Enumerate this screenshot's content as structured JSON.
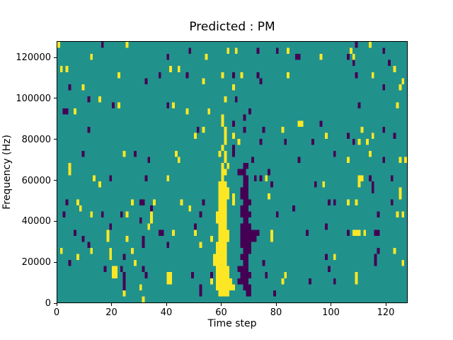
{
  "chart_data": {
    "type": "heatmap",
    "title": "Predicted : PM",
    "xlabel": "Time step",
    "ylabel": "Frequency (Hz)",
    "x_range": [
      0,
      128
    ],
    "y_range": [
      0,
      128000
    ],
    "x_ticks": [
      0,
      20,
      40,
      60,
      80,
      100,
      120
    ],
    "y_ticks": [
      0,
      20000,
      40000,
      60000,
      80000,
      100000,
      120000
    ],
    "grid_size": [
      128,
      43
    ],
    "grid_on": false,
    "legend": "none",
    "colors": {
      "figure_bg": "#ffffff",
      "background": "#21918c",
      "high": "#fde725",
      "low": "#440154",
      "text": "#000000",
      "spine": "#000000"
    },
    "cells": {
      "yellow_runs": [
        [
          1,
          59,
          62
        ],
        [
          2,
          58,
          64
        ],
        [
          3,
          58,
          63
        ],
        [
          4,
          58,
          62
        ],
        [
          5,
          58,
          62
        ],
        [
          6,
          57,
          61
        ],
        [
          7,
          57,
          61
        ],
        [
          8,
          58,
          61
        ],
        [
          9,
          58,
          61
        ],
        [
          10,
          59,
          62
        ],
        [
          11,
          59,
          62
        ],
        [
          12,
          59,
          61
        ],
        [
          13,
          58,
          61
        ],
        [
          14,
          58,
          61
        ],
        [
          15,
          59,
          61
        ],
        [
          16,
          59,
          61
        ],
        [
          17,
          59,
          62
        ],
        [
          18,
          59,
          62
        ],
        [
          19,
          59,
          61
        ],
        [
          20,
          60,
          60
        ],
        [
          21,
          60,
          61
        ],
        [
          22,
          60,
          60
        ],
        [
          22,
          62,
          62
        ],
        [
          23,
          61,
          61
        ],
        [
          24,
          59,
          59
        ],
        [
          24,
          61,
          61
        ],
        [
          25,
          60,
          60
        ],
        [
          26,
          61,
          61
        ],
        [
          27,
          61,
          61
        ],
        [
          28,
          61,
          61
        ],
        [
          29,
          60,
          60
        ],
        [
          30,
          60,
          60
        ],
        [
          33,
          61,
          61
        ],
        [
          37,
          60,
          60
        ],
        [
          16,
          64,
          64
        ],
        [
          17,
          64,
          64
        ],
        [
          42,
          0,
          0
        ],
        [
          42,
          25,
          25
        ],
        [
          40,
          12,
          12
        ],
        [
          38,
          1,
          1
        ],
        [
          38,
          3,
          3
        ],
        [
          37,
          22,
          22
        ],
        [
          38,
          41,
          41
        ],
        [
          35,
          9,
          9
        ],
        [
          33,
          15,
          15
        ],
        [
          32,
          22,
          22
        ],
        [
          32,
          42,
          42
        ],
        [
          31,
          6,
          6
        ],
        [
          24,
          24,
          24
        ],
        [
          24,
          43,
          43
        ],
        [
          22,
          4,
          4
        ],
        [
          41,
          62,
          62
        ],
        [
          41,
          65,
          65
        ],
        [
          41,
          84,
          84
        ],
        [
          40,
          54,
          54
        ],
        [
          38,
          44,
          44
        ],
        [
          37,
          67,
          67
        ],
        [
          37,
          84,
          84
        ],
        [
          36,
          53,
          53
        ],
        [
          35,
          64,
          64
        ],
        [
          31,
          47,
          47
        ],
        [
          31,
          55,
          55
        ],
        [
          28,
          53,
          53
        ],
        [
          28,
          82,
          82
        ],
        [
          27,
          50,
          50
        ],
        [
          27,
          64,
          64
        ],
        [
          26,
          66,
          66
        ],
        [
          23,
          44,
          44
        ],
        [
          42,
          114,
          114
        ],
        [
          41,
          107,
          107
        ],
        [
          40,
          96,
          96
        ],
        [
          40,
          108,
          108
        ],
        [
          38,
          123,
          123
        ],
        [
          37,
          115,
          115
        ],
        [
          36,
          126,
          126
        ],
        [
          35,
          125,
          125
        ],
        [
          32,
          124,
          124
        ],
        [
          29,
          88,
          89
        ],
        [
          28,
          111,
          111
        ],
        [
          27,
          98,
          98
        ],
        [
          27,
          115,
          115
        ],
        [
          26,
          110,
          110
        ],
        [
          26,
          113,
          113
        ],
        [
          24,
          114,
          114
        ],
        [
          23,
          106,
          106
        ],
        [
          23,
          125,
          125
        ],
        [
          23,
          127,
          127
        ],
        [
          21,
          4,
          4
        ],
        [
          20,
          13,
          13
        ],
        [
          20,
          40,
          40
        ],
        [
          19,
          15,
          15
        ],
        [
          16,
          7,
          7
        ],
        [
          16,
          27,
          27
        ],
        [
          16,
          35,
          35
        ],
        [
          15,
          8,
          8
        ],
        [
          14,
          12,
          12
        ],
        [
          14,
          25,
          25
        ],
        [
          14,
          34,
          34
        ],
        [
          13,
          34,
          34
        ],
        [
          12,
          33,
          33
        ],
        [
          11,
          42,
          42
        ],
        [
          11,
          18,
          18
        ],
        [
          10,
          18,
          18
        ],
        [
          10,
          25,
          25
        ],
        [
          8,
          27,
          27
        ],
        [
          8,
          12,
          12
        ],
        [
          8,
          1,
          1
        ],
        [
          7,
          7,
          7
        ],
        [
          8,
          19,
          19
        ],
        [
          7,
          19,
          19
        ],
        [
          6,
          28,
          28
        ],
        [
          5,
          20,
          21
        ],
        [
          4,
          20,
          21
        ],
        [
          4,
          40,
          41
        ],
        [
          3,
          40,
          41
        ],
        [
          2,
          30,
          30
        ],
        [
          1,
          24,
          24
        ],
        [
          0,
          31,
          31
        ],
        [
          16,
          45,
          45
        ],
        [
          15,
          48,
          48
        ],
        [
          11,
          50,
          50
        ],
        [
          10,
          56,
          56
        ],
        [
          9,
          52,
          52
        ],
        [
          3,
          56,
          56
        ],
        [
          20,
          76,
          76
        ],
        [
          17,
          77,
          77
        ],
        [
          11,
          78,
          78
        ],
        [
          10,
          78,
          78
        ],
        [
          3,
          82,
          82
        ],
        [
          4,
          83,
          83
        ],
        [
          20,
          110,
          111
        ],
        [
          19,
          110,
          110
        ],
        [
          19,
          97,
          97
        ],
        [
          18,
          125,
          125
        ],
        [
          17,
          125,
          125
        ],
        [
          16,
          106,
          106
        ],
        [
          16,
          109,
          109
        ],
        [
          14,
          124,
          124
        ],
        [
          14,
          126,
          126
        ],
        [
          11,
          108,
          110
        ],
        [
          11,
          112,
          112
        ],
        [
          8,
          123,
          123
        ],
        [
          7,
          101,
          101
        ],
        [
          6,
          126,
          126
        ],
        [
          4,
          109,
          109
        ],
        [
          3,
          109,
          109
        ]
      ],
      "purple_runs": [
        [
          1,
          69,
          70
        ],
        [
          2,
          68,
          70
        ],
        [
          3,
          66,
          69
        ],
        [
          4,
          67,
          70
        ],
        [
          5,
          66,
          69
        ],
        [
          6,
          68,
          69
        ],
        [
          7,
          67,
          69
        ],
        [
          8,
          68,
          70
        ],
        [
          9,
          67,
          70
        ],
        [
          10,
          67,
          72
        ],
        [
          11,
          67,
          72
        ],
        [
          12,
          67,
          70
        ],
        [
          13,
          68,
          69
        ],
        [
          14,
          67,
          70
        ],
        [
          15,
          67,
          69
        ],
        [
          16,
          68,
          70
        ],
        [
          17,
          67,
          69
        ],
        [
          18,
          67,
          69
        ],
        [
          19,
          68,
          69
        ],
        [
          20,
          68,
          69
        ],
        [
          21,
          66,
          68
        ],
        [
          22,
          68,
          69
        ],
        [
          23,
          71,
          71
        ],
        [
          24,
          64,
          64
        ],
        [
          25,
          64,
          64
        ],
        [
          26,
          74,
          74
        ],
        [
          26,
          83,
          83
        ],
        [
          28,
          51,
          51
        ],
        [
          28,
          68,
          68
        ],
        [
          28,
          75,
          75
        ],
        [
          29,
          64,
          64
        ],
        [
          30,
          68,
          68
        ],
        [
          31,
          70,
          70
        ],
        [
          33,
          65,
          65
        ],
        [
          36,
          74,
          74
        ],
        [
          37,
          47,
          47
        ],
        [
          37,
          64,
          64
        ],
        [
          37,
          73,
          73
        ],
        [
          21,
          77,
          77
        ],
        [
          42,
          16,
          16
        ],
        [
          40,
          40,
          40
        ],
        [
          37,
          37,
          37
        ],
        [
          36,
          32,
          32
        ],
        [
          35,
          4,
          4
        ],
        [
          33,
          11,
          11
        ],
        [
          32,
          20,
          20
        ],
        [
          32,
          40,
          40
        ],
        [
          31,
          2,
          3
        ],
        [
          28,
          11,
          11
        ],
        [
          24,
          9,
          9
        ],
        [
          24,
          28,
          28
        ],
        [
          23,
          33,
          33
        ],
        [
          41,
          48,
          48
        ],
        [
          41,
          73,
          73
        ],
        [
          41,
          80,
          80
        ],
        [
          40,
          87,
          87
        ],
        [
          42,
          109,
          109
        ],
        [
          41,
          119,
          119
        ],
        [
          40,
          88,
          88
        ],
        [
          40,
          106,
          106
        ],
        [
          39,
          108,
          108
        ],
        [
          39,
          121,
          121
        ],
        [
          37,
          109,
          109
        ],
        [
          35,
          119,
          119
        ],
        [
          32,
          110,
          110
        ],
        [
          29,
          96,
          96
        ],
        [
          28,
          119,
          119
        ],
        [
          27,
          106,
          106
        ],
        [
          27,
          123,
          123
        ],
        [
          26,
          93,
          93
        ],
        [
          26,
          108,
          108
        ],
        [
          24,
          101,
          101
        ],
        [
          23,
          88,
          88
        ],
        [
          23,
          119,
          119
        ],
        [
          20,
          19,
          19
        ],
        [
          20,
          32,
          32
        ],
        [
          16,
          3,
          3
        ],
        [
          16,
          30,
          31
        ],
        [
          15,
          34,
          34
        ],
        [
          14,
          2,
          2
        ],
        [
          14,
          16,
          16
        ],
        [
          14,
          23,
          23
        ],
        [
          12,
          19,
          19
        ],
        [
          13,
          30,
          30
        ],
        [
          11,
          6,
          6
        ],
        [
          11,
          37,
          38
        ],
        [
          10,
          9,
          9
        ],
        [
          10,
          31,
          31
        ],
        [
          9,
          31,
          31
        ],
        [
          9,
          11,
          11
        ],
        [
          9,
          40,
          40
        ],
        [
          7,
          24,
          24
        ],
        [
          6,
          4,
          4
        ],
        [
          5,
          17,
          17
        ],
        [
          5,
          23,
          23
        ],
        [
          5,
          31,
          31
        ],
        [
          4,
          24,
          24
        ],
        [
          3,
          24,
          24
        ],
        [
          2,
          24,
          24
        ],
        [
          4,
          32,
          32
        ],
        [
          16,
          53,
          53
        ],
        [
          14,
          52,
          52
        ],
        [
          12,
          50,
          50
        ],
        [
          4,
          49,
          49
        ],
        [
          4,
          56,
          56
        ],
        [
          1,
          52,
          52
        ],
        [
          2,
          52,
          52
        ],
        [
          20,
          72,
          72
        ],
        [
          20,
          74,
          74
        ],
        [
          19,
          78,
          78
        ],
        [
          15,
          86,
          86
        ],
        [
          14,
          80,
          80
        ],
        [
          11,
          73,
          73
        ],
        [
          6,
          75,
          75
        ],
        [
          4,
          76,
          76
        ],
        [
          1,
          79,
          79
        ],
        [
          20,
          114,
          114
        ],
        [
          20,
          122,
          122
        ],
        [
          19,
          94,
          94
        ],
        [
          19,
          115,
          115
        ],
        [
          18,
          115,
          115
        ],
        [
          16,
          99,
          99
        ],
        [
          16,
          101,
          101
        ],
        [
          16,
          122,
          122
        ],
        [
          14,
          117,
          117
        ],
        [
          12,
          98,
          98
        ],
        [
          11,
          91,
          91
        ],
        [
          11,
          106,
          106
        ],
        [
          11,
          116,
          117
        ],
        [
          8,
          117,
          117
        ],
        [
          7,
          98,
          98
        ],
        [
          7,
          116,
          116
        ],
        [
          6,
          116,
          116
        ],
        [
          5,
          99,
          99
        ],
        [
          3,
          92,
          92
        ],
        [
          3,
          101,
          101
        ]
      ]
    }
  }
}
